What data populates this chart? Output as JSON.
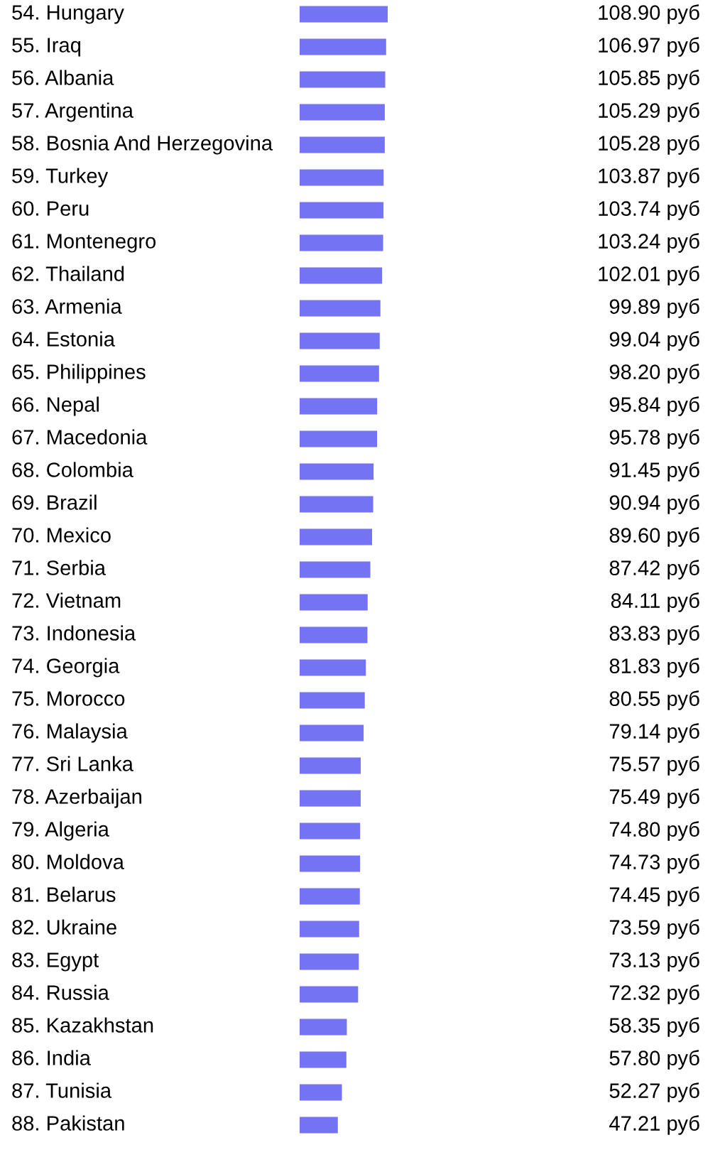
{
  "chart_data": {
    "type": "bar",
    "orientation": "horizontal",
    "color": "#7373f3",
    "categories": [
      "54. Hungary",
      "55. Iraq",
      "56. Albania",
      "57. Argentina",
      "58. Bosnia And Herzegovina",
      "59. Turkey",
      "60. Peru",
      "61. Montenegro",
      "62. Thailand",
      "63. Armenia",
      "64. Estonia",
      "65. Philippines",
      "66. Nepal",
      "67. Macedonia",
      "68. Colombia",
      "69. Brazil",
      "70. Mexico",
      "71. Serbia",
      "72. Vietnam",
      "73. Indonesia",
      "74. Georgia",
      "75. Morocco",
      "76. Malaysia",
      "77. Sri Lanka",
      "78. Azerbaijan",
      "79. Algeria",
      "80. Moldova",
      "81. Belarus",
      "82. Ukraine",
      "83. Egypt",
      "84. Russia",
      "85. Kazakhstan",
      "86. India",
      "87. Tunisia",
      "88. Pakistan"
    ],
    "values": [
      108.9,
      106.97,
      105.85,
      105.29,
      105.28,
      103.87,
      103.74,
      103.24,
      102.01,
      99.89,
      99.04,
      98.2,
      95.84,
      95.78,
      91.45,
      90.94,
      89.6,
      87.42,
      84.11,
      83.83,
      81.83,
      80.55,
      79.14,
      75.57,
      75.49,
      74.8,
      74.73,
      74.45,
      73.59,
      73.13,
      72.32,
      58.35,
      57.8,
      52.27,
      47.21
    ],
    "value_labels": [
      "108.90 руб",
      "106.97 руб",
      "105.85 руб",
      "105.29 руб",
      "105.28 руб",
      "103.87 руб",
      "103.74 руб",
      "103.24 руб",
      "102.01 руб",
      "99.89 руб",
      "99.04 руб",
      "98.20 руб",
      "95.84 руб",
      "95.78 руб",
      "91.45 руб",
      "90.94 руб",
      "89.60 руб",
      "87.42 руб",
      "84.11 руб",
      "83.83 руб",
      "81.83 руб",
      "80.55 руб",
      "79.14 руб",
      "75.57 руб",
      "75.49 руб",
      "74.80 руб",
      "74.73 руб",
      "74.45 руб",
      "73.59 руб",
      "73.13 руб",
      "72.32 руб",
      "58.35 руб",
      "57.80 руб",
      "52.27 руб",
      "47.21 руб"
    ]
  }
}
